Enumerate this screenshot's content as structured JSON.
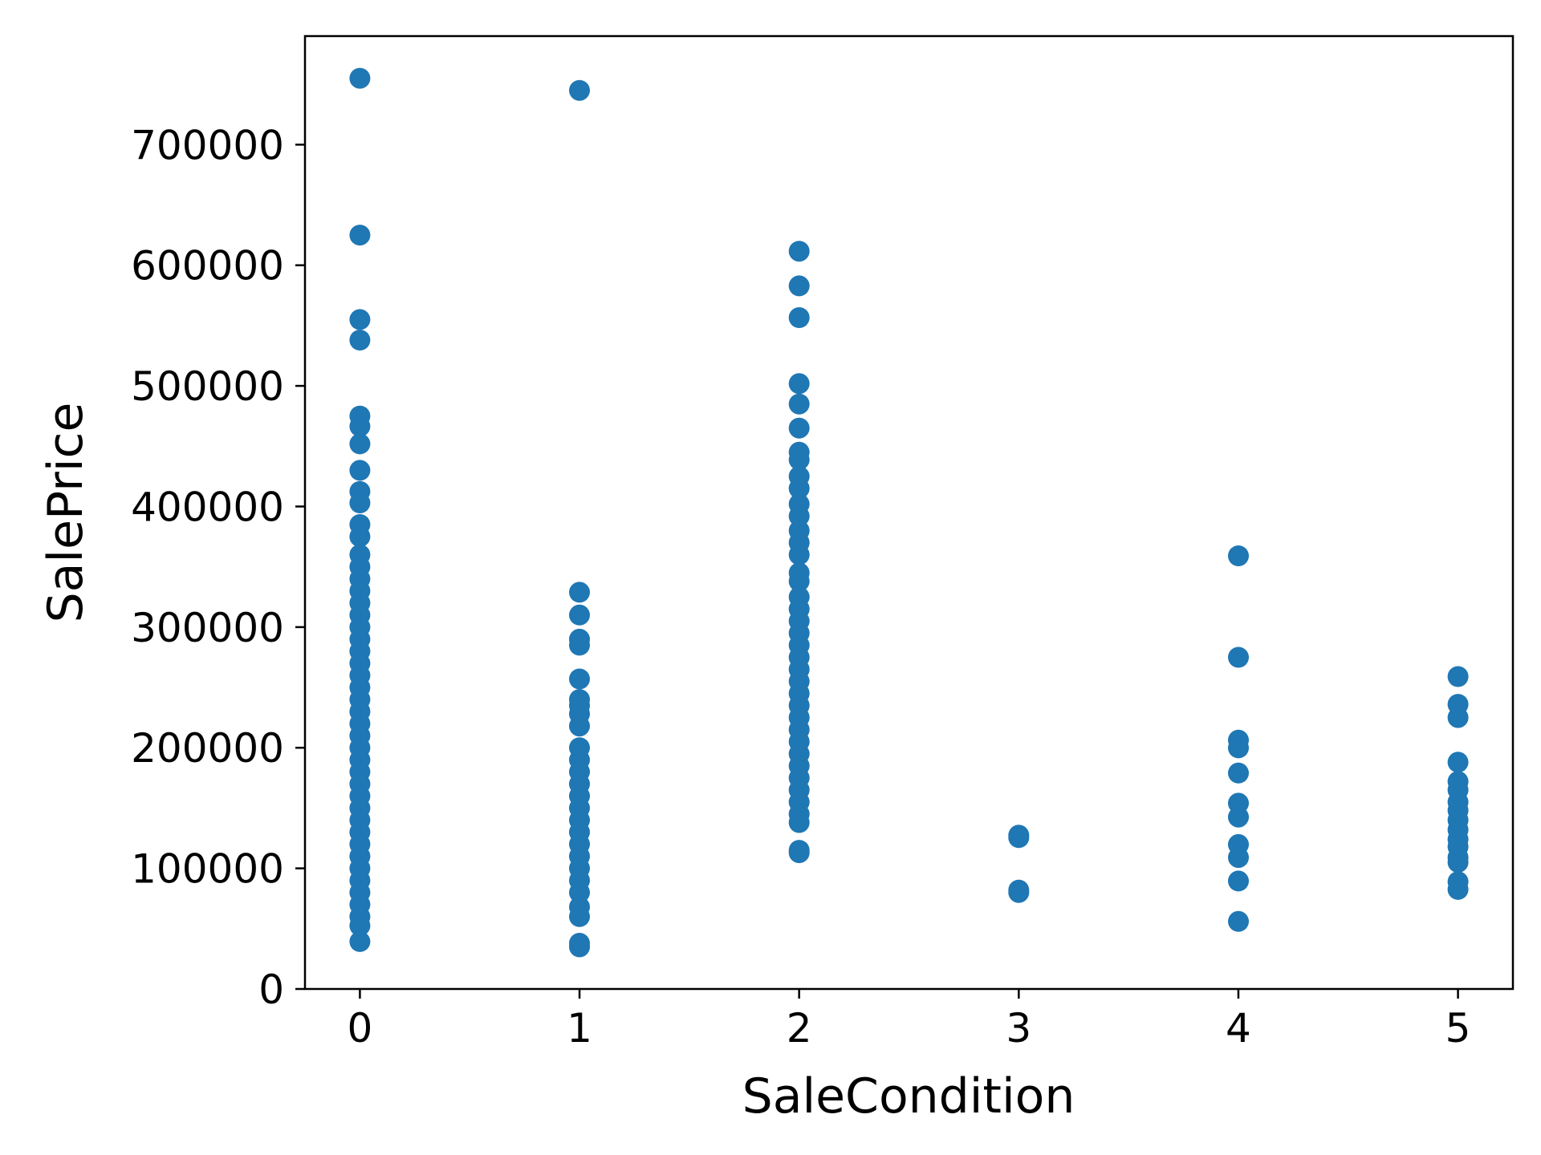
{
  "chart_data": {
    "type": "scatter",
    "xlabel": "SaleCondition",
    "ylabel": "SalePrice",
    "xlim": [
      -0.25,
      5.25
    ],
    "ylim": [
      0,
      790000
    ],
    "x_ticks": [
      0,
      1,
      2,
      3,
      4,
      5
    ],
    "y_ticks": [
      0,
      100000,
      200000,
      300000,
      400000,
      500000,
      600000,
      700000
    ],
    "grid": false,
    "legend": "none",
    "marker_color": "#1f77b4",
    "points": [
      {
        "x": 0,
        "y": 755000
      },
      {
        "x": 0,
        "y": 625000
      },
      {
        "x": 0,
        "y": 555000
      },
      {
        "x": 0,
        "y": 538000
      },
      {
        "x": 0,
        "y": 475000
      },
      {
        "x": 0,
        "y": 466500
      },
      {
        "x": 0,
        "y": 451950
      },
      {
        "x": 0,
        "y": 430000
      },
      {
        "x": 0,
        "y": 412500
      },
      {
        "x": 0,
        "y": 403000
      },
      {
        "x": 0,
        "y": 385000
      },
      {
        "x": 0,
        "y": 375000
      },
      {
        "x": 0,
        "y": 360000
      },
      {
        "x": 0,
        "y": 350000
      },
      {
        "x": 0,
        "y": 340000
      },
      {
        "x": 0,
        "y": 330000
      },
      {
        "x": 0,
        "y": 320000
      },
      {
        "x": 0,
        "y": 310000
      },
      {
        "x": 0,
        "y": 300000
      },
      {
        "x": 0,
        "y": 290000
      },
      {
        "x": 0,
        "y": 280000
      },
      {
        "x": 0,
        "y": 270000
      },
      {
        "x": 0,
        "y": 260000
      },
      {
        "x": 0,
        "y": 250000
      },
      {
        "x": 0,
        "y": 240000
      },
      {
        "x": 0,
        "y": 230000
      },
      {
        "x": 0,
        "y": 220000
      },
      {
        "x": 0,
        "y": 210000
      },
      {
        "x": 0,
        "y": 200000
      },
      {
        "x": 0,
        "y": 190000
      },
      {
        "x": 0,
        "y": 180000
      },
      {
        "x": 0,
        "y": 170000
      },
      {
        "x": 0,
        "y": 160000
      },
      {
        "x": 0,
        "y": 150000
      },
      {
        "x": 0,
        "y": 140000
      },
      {
        "x": 0,
        "y": 130000
      },
      {
        "x": 0,
        "y": 120000
      },
      {
        "x": 0,
        "y": 110000
      },
      {
        "x": 0,
        "y": 100000
      },
      {
        "x": 0,
        "y": 90000
      },
      {
        "x": 0,
        "y": 80000
      },
      {
        "x": 0,
        "y": 70000
      },
      {
        "x": 0,
        "y": 60000
      },
      {
        "x": 0,
        "y": 52500
      },
      {
        "x": 0,
        "y": 39300
      },
      {
        "x": 1,
        "y": 745000
      },
      {
        "x": 1,
        "y": 328900
      },
      {
        "x": 1,
        "y": 310000
      },
      {
        "x": 1,
        "y": 290000
      },
      {
        "x": 1,
        "y": 285000
      },
      {
        "x": 1,
        "y": 257000
      },
      {
        "x": 1,
        "y": 240000
      },
      {
        "x": 1,
        "y": 235000
      },
      {
        "x": 1,
        "y": 228000
      },
      {
        "x": 1,
        "y": 218000
      },
      {
        "x": 1,
        "y": 200000
      },
      {
        "x": 1,
        "y": 190000
      },
      {
        "x": 1,
        "y": 180000
      },
      {
        "x": 1,
        "y": 170000
      },
      {
        "x": 1,
        "y": 160000
      },
      {
        "x": 1,
        "y": 150000
      },
      {
        "x": 1,
        "y": 140000
      },
      {
        "x": 1,
        "y": 130000
      },
      {
        "x": 1,
        "y": 120000
      },
      {
        "x": 1,
        "y": 110000
      },
      {
        "x": 1,
        "y": 100000
      },
      {
        "x": 1,
        "y": 90000
      },
      {
        "x": 1,
        "y": 80000
      },
      {
        "x": 1,
        "y": 68000
      },
      {
        "x": 1,
        "y": 60000
      },
      {
        "x": 1,
        "y": 37900
      },
      {
        "x": 1,
        "y": 34900
      },
      {
        "x": 2,
        "y": 611657
      },
      {
        "x": 2,
        "y": 582933
      },
      {
        "x": 2,
        "y": 556581
      },
      {
        "x": 2,
        "y": 501837
      },
      {
        "x": 2,
        "y": 485000
      },
      {
        "x": 2,
        "y": 465000
      },
      {
        "x": 2,
        "y": 445000
      },
      {
        "x": 2,
        "y": 438780
      },
      {
        "x": 2,
        "y": 425000
      },
      {
        "x": 2,
        "y": 415000
      },
      {
        "x": 2,
        "y": 402000
      },
      {
        "x": 2,
        "y": 392000
      },
      {
        "x": 2,
        "y": 380000
      },
      {
        "x": 2,
        "y": 370000
      },
      {
        "x": 2,
        "y": 360000
      },
      {
        "x": 2,
        "y": 345000
      },
      {
        "x": 2,
        "y": 338000
      },
      {
        "x": 2,
        "y": 325000
      },
      {
        "x": 2,
        "y": 315000
      },
      {
        "x": 2,
        "y": 305000
      },
      {
        "x": 2,
        "y": 295000
      },
      {
        "x": 2,
        "y": 285000
      },
      {
        "x": 2,
        "y": 275000
      },
      {
        "x": 2,
        "y": 265000
      },
      {
        "x": 2,
        "y": 255000
      },
      {
        "x": 2,
        "y": 245000
      },
      {
        "x": 2,
        "y": 235000
      },
      {
        "x": 2,
        "y": 225000
      },
      {
        "x": 2,
        "y": 215000
      },
      {
        "x": 2,
        "y": 205000
      },
      {
        "x": 2,
        "y": 195000
      },
      {
        "x": 2,
        "y": 185000
      },
      {
        "x": 2,
        "y": 175000
      },
      {
        "x": 2,
        "y": 165000
      },
      {
        "x": 2,
        "y": 155000
      },
      {
        "x": 2,
        "y": 145000
      },
      {
        "x": 2,
        "y": 138000
      },
      {
        "x": 2,
        "y": 115000
      },
      {
        "x": 2,
        "y": 113000
      },
      {
        "x": 3,
        "y": 127500
      },
      {
        "x": 3,
        "y": 125500
      },
      {
        "x": 3,
        "y": 82000
      },
      {
        "x": 3,
        "y": 80000
      },
      {
        "x": 4,
        "y": 359100
      },
      {
        "x": 4,
        "y": 275000
      },
      {
        "x": 4,
        "y": 206300
      },
      {
        "x": 4,
        "y": 199900
      },
      {
        "x": 4,
        "y": 179000
      },
      {
        "x": 4,
        "y": 154000
      },
      {
        "x": 4,
        "y": 142500
      },
      {
        "x": 4,
        "y": 119750
      },
      {
        "x": 4,
        "y": 109000
      },
      {
        "x": 4,
        "y": 89500
      },
      {
        "x": 4,
        "y": 55993
      },
      {
        "x": 5,
        "y": 259000
      },
      {
        "x": 5,
        "y": 236000
      },
      {
        "x": 5,
        "y": 225000
      },
      {
        "x": 5,
        "y": 188000
      },
      {
        "x": 5,
        "y": 172000
      },
      {
        "x": 5,
        "y": 165000
      },
      {
        "x": 5,
        "y": 155000
      },
      {
        "x": 5,
        "y": 148000
      },
      {
        "x": 5,
        "y": 140000
      },
      {
        "x": 5,
        "y": 132000
      },
      {
        "x": 5,
        "y": 124000
      },
      {
        "x": 5,
        "y": 118000
      },
      {
        "x": 5,
        "y": 109000
      },
      {
        "x": 5,
        "y": 105000
      },
      {
        "x": 5,
        "y": 89000
      },
      {
        "x": 5,
        "y": 82500
      }
    ]
  }
}
